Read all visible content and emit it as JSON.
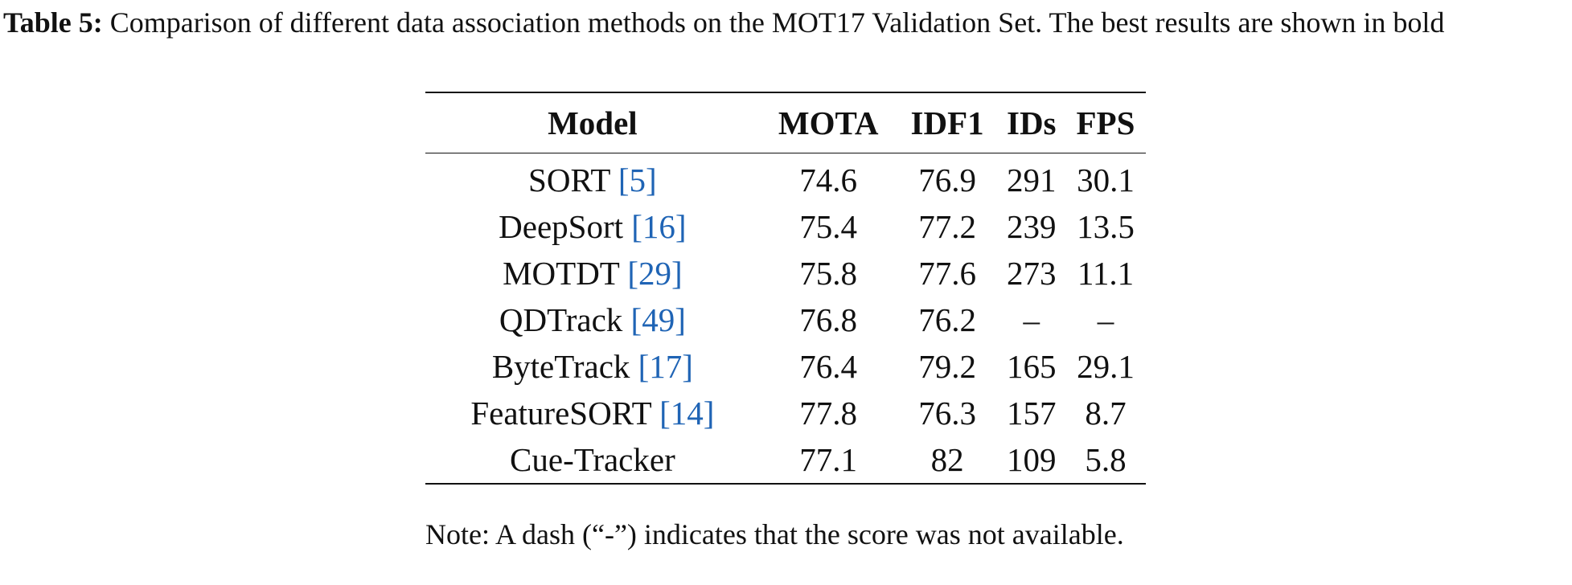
{
  "caption": {
    "label": "Table 5:",
    "text": "Comparison of different data association methods on the MOT17 Validation Set. The best results are shown in bold"
  },
  "table": {
    "header": [
      "Model",
      "MOTA",
      "IDF1",
      "IDs",
      "FPS"
    ],
    "rows": [
      [
        {
          "name": "SORT",
          "ref": "[5]"
        },
        74.6,
        76.9,
        291,
        30.1
      ],
      [
        {
          "name": "DeepSort",
          "ref": "[16]"
        },
        75.4,
        77.2,
        239,
        13.5
      ],
      [
        {
          "name": "MOTDT",
          "ref": "[29]"
        },
        75.8,
        77.6,
        273,
        11.1
      ],
      [
        {
          "name": "QDTrack",
          "ref": "[49]"
        },
        76.8,
        76.2,
        "–",
        "–"
      ],
      [
        {
          "name": "ByteTrack",
          "ref": "[17]"
        },
        76.4,
        79.2,
        165,
        29.1
      ],
      [
        {
          "name": "FeatureSORT",
          "ref": "[14]"
        },
        77.8,
        76.3,
        157,
        8.7
      ],
      [
        {
          "name": "Cue-Tracker"
        },
        77.1,
        82,
        109,
        5.8
      ]
    ]
  },
  "note": "Note: A dash (“-”) indicates that the score was not available."
}
